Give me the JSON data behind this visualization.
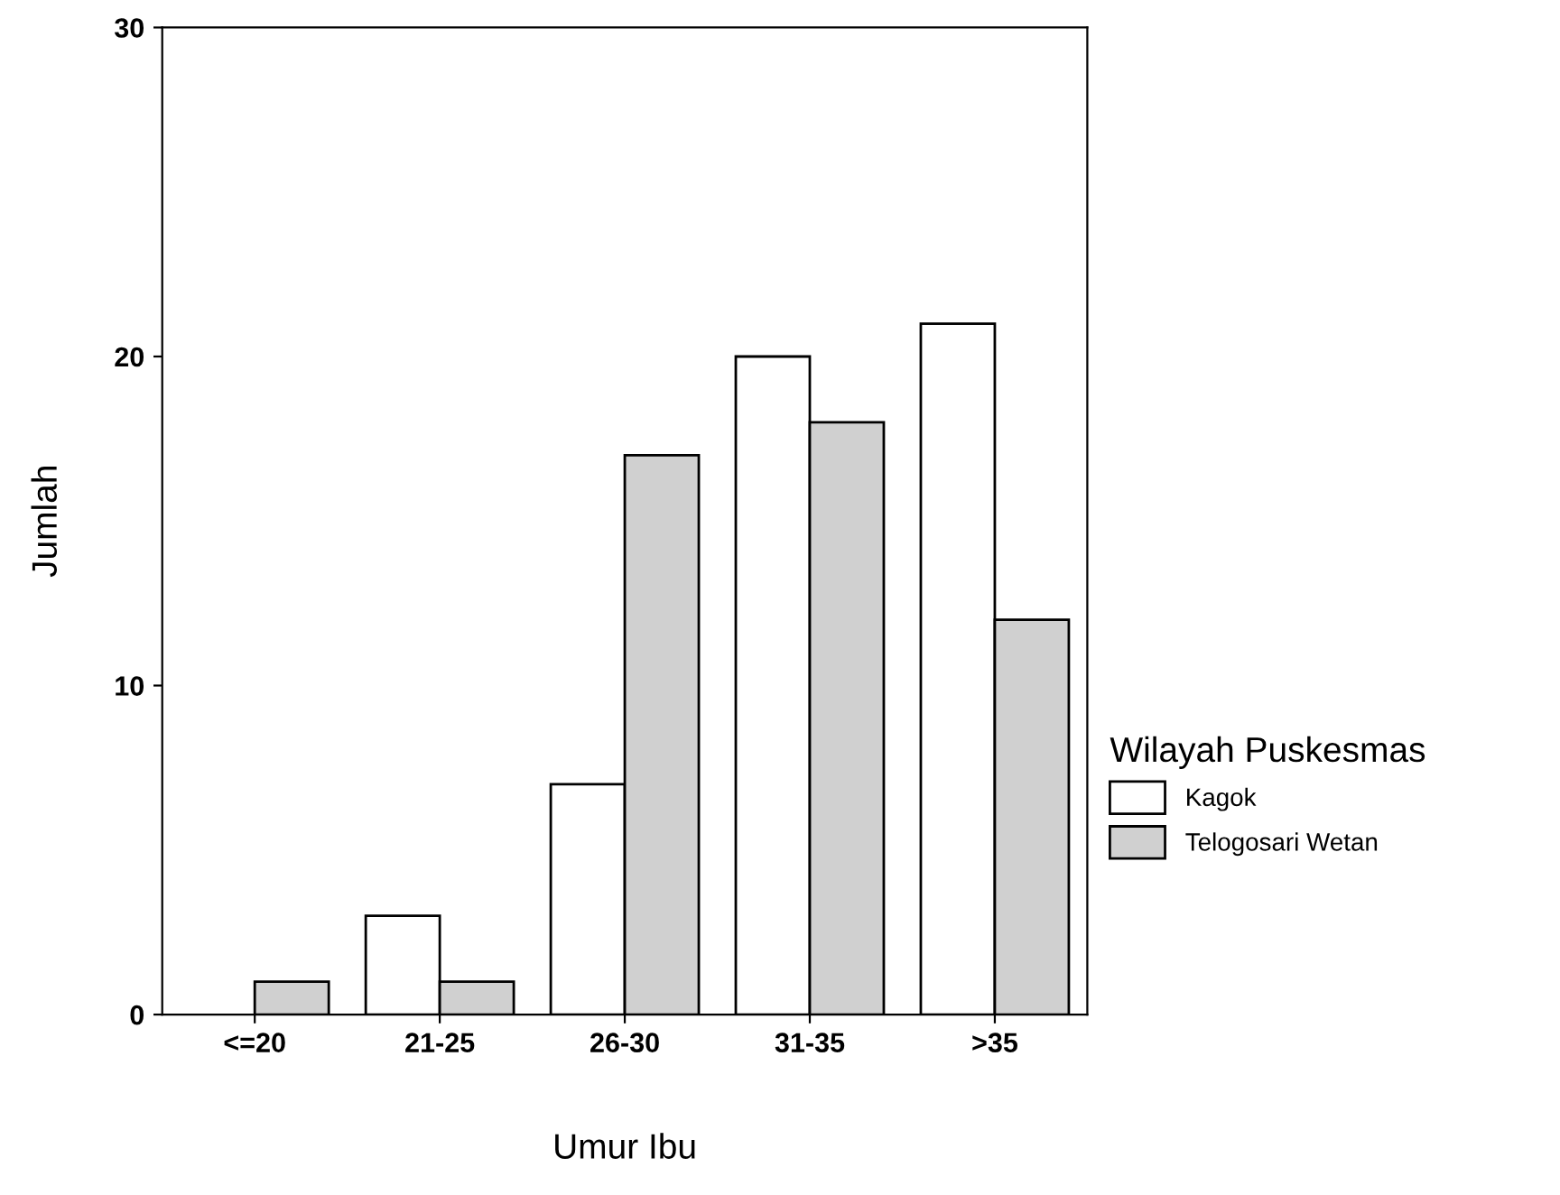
{
  "chart_data": {
    "type": "bar",
    "xlabel": "Umur Ibu",
    "ylabel": "Jumlah",
    "legend_title": "Wilayah Puskesmas",
    "categories": [
      "<=20",
      "21-25",
      "26-30",
      "31-35",
      ">35"
    ],
    "series": [
      {
        "name": "Kagok",
        "color": "#ffffff",
        "values": [
          0,
          3,
          7,
          20,
          21
        ]
      },
      {
        "name": "Telogosari Wetan",
        "color": "#d0d0d0",
        "values": [
          1,
          1,
          17,
          18,
          12
        ]
      }
    ],
    "ylim": [
      0,
      30
    ],
    "yticks": [
      0,
      10,
      20,
      30
    ],
    "grid": false,
    "legend": "right"
  }
}
